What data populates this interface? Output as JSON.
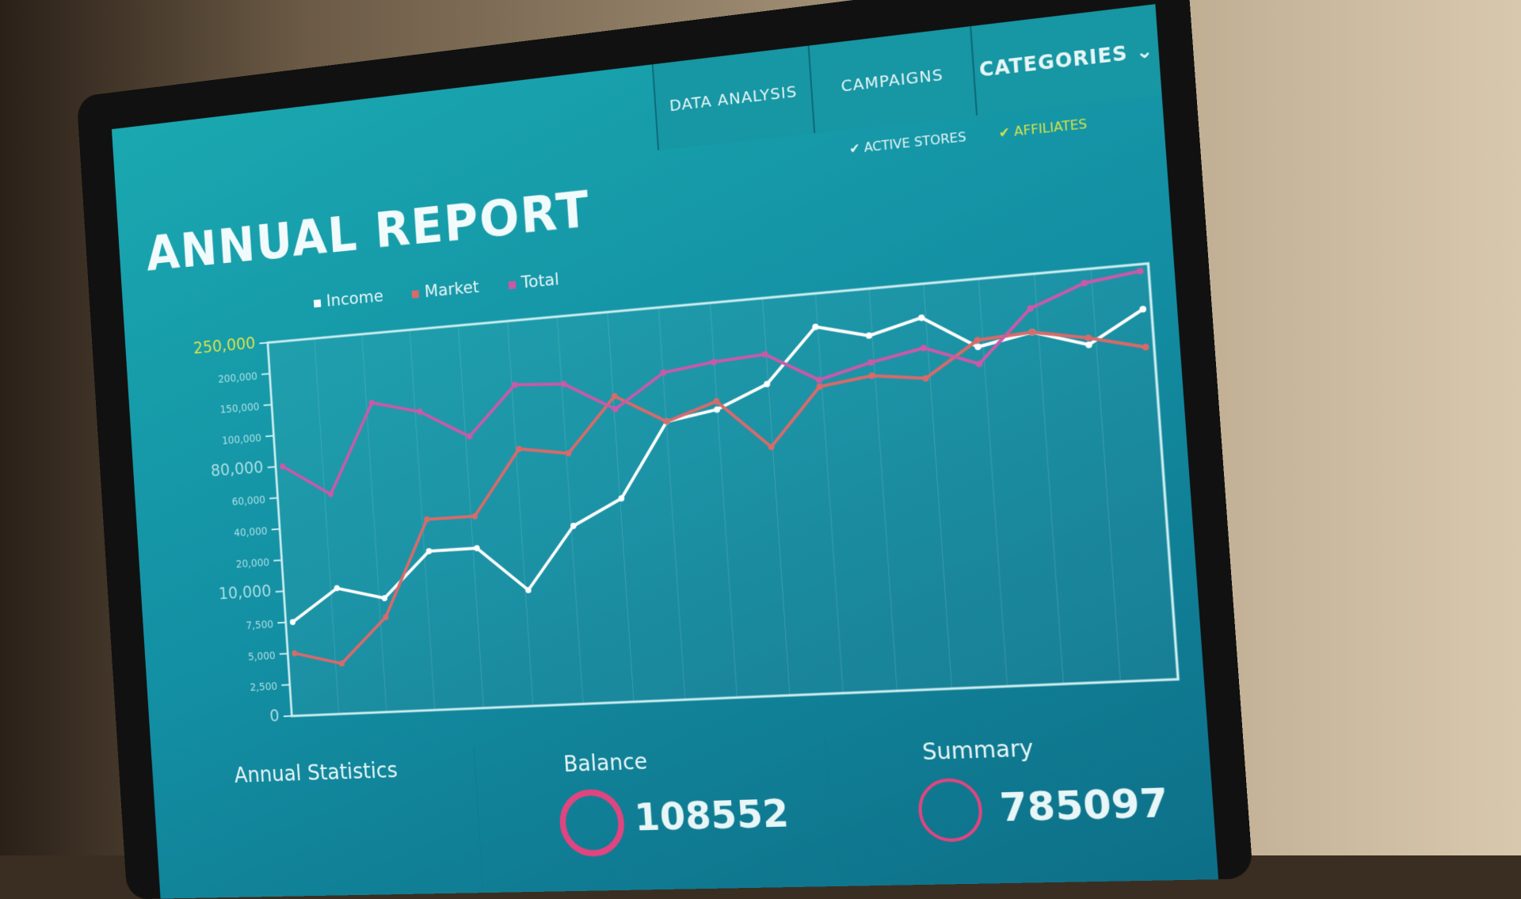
{
  "header": {
    "title": "ANNUAL REPORT",
    "tabs": [
      {
        "label": "DATA ANALYSIS"
      },
      {
        "label": "CAMPAIGNS"
      },
      {
        "label": "CATEGORIES"
      }
    ]
  },
  "filters": [
    {
      "label": "ACTIVE STORES",
      "color": "#e8f6f7"
    },
    {
      "label": "AFFILIATES",
      "color": "#d7e34a"
    }
  ],
  "legend": [
    {
      "label": "Income",
      "color": "#ffffff"
    },
    {
      "label": "Market",
      "color": "#d86a6a"
    },
    {
      "label": "Total",
      "color": "#c85aa8"
    }
  ],
  "panels": [
    {
      "label": "Annual Statistics",
      "value": ""
    },
    {
      "label": "Balance",
      "value": "108552"
    },
    {
      "label": "Summary",
      "value": "785097"
    }
  ],
  "accent": "#e0457f",
  "chart_data": {
    "type": "line",
    "title": "",
    "xlabel": "",
    "ylabel": "",
    "yticks": [
      "0",
      "2,500",
      "5,000",
      "7,500",
      "10,000",
      "20,000",
      "40,000",
      "60,000",
      "80,000",
      "100,000",
      "150,000",
      "200,000",
      "250,000"
    ],
    "ytick_values": [
      0,
      2500,
      5000,
      7500,
      10000,
      20000,
      40000,
      60000,
      80000,
      100000,
      150000,
      200000,
      250000
    ],
    "ylim": [
      0,
      250000
    ],
    "grid": true,
    "legend": "top-left",
    "series": [
      {
        "name": "Income",
        "color": "#ffffff",
        "values": [
          7500,
          10000,
          9000,
          20000,
          20000,
          9000,
          30000,
          45000,
          90000,
          95000,
          120000,
          200000,
          180000,
          200000,
          150000,
          165000,
          140000,
          185000
        ]
      },
      {
        "name": "Market",
        "color": "#d86a6a",
        "values": [
          5000,
          4000,
          7500,
          40000,
          40000,
          80000,
          75000,
          120000,
          90000,
          100000,
          70000,
          110000,
          120000,
          110000,
          160000,
          165000,
          150000,
          130000
        ]
      },
      {
        "name": "Total",
        "color": "#c85aa8",
        "values": [
          80000,
          60000,
          140000,
          120000,
          90000,
          150000,
          145000,
          100000,
          150000,
          160000,
          165000,
          120000,
          140000,
          155000,
          125000,
          200000,
          230000,
          240000
        ]
      }
    ]
  }
}
